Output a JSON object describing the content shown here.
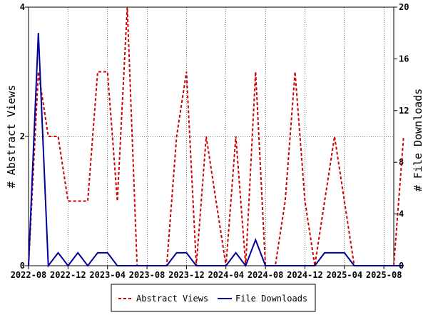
{
  "chart_data": {
    "type": "line",
    "title": "",
    "x_ticks": [
      "2022-08",
      "2022-12",
      "2023-04",
      "2023-08",
      "2023-12",
      "2024-04",
      "2024-08",
      "2024-12",
      "2025-04",
      "2025-08"
    ],
    "x_range": [
      "2022-08",
      "2025-09"
    ],
    "y_left": {
      "label": "# Abstract Views",
      "ticks": [
        "0",
        "2",
        "4"
      ],
      "range": [
        0,
        4
      ]
    },
    "y_right": {
      "label": "# File Downloads",
      "ticks": [
        "0",
        "4",
        "8",
        "12",
        "16",
        "20"
      ],
      "range": [
        0,
        20
      ]
    },
    "grid": true,
    "legend_position": "bottom-center",
    "series": [
      {
        "name": "Abstract Views",
        "axis": "left",
        "style": "dashed",
        "color": "#cc0000",
        "points": [
          [
            "2022-08",
            0
          ],
          [
            "2022-09",
            3
          ],
          [
            "2022-10",
            2
          ],
          [
            "2022-11",
            2
          ],
          [
            "2022-12",
            1
          ],
          [
            "2023-01",
            1
          ],
          [
            "2023-02",
            1
          ],
          [
            "2023-03",
            3
          ],
          [
            "2023-04",
            3
          ],
          [
            "2023-05",
            1
          ],
          [
            "2023-06",
            4
          ],
          [
            "2023-07",
            0
          ],
          [
            "2023-08",
            0
          ],
          [
            "2023-09",
            0
          ],
          [
            "2023-10",
            0
          ],
          [
            "2023-11",
            2
          ],
          [
            "2023-12",
            3
          ],
          [
            "2024-01",
            0
          ],
          [
            "2024-02",
            2
          ],
          [
            "2024-03",
            1
          ],
          [
            "2024-04",
            0
          ],
          [
            "2024-05",
            2
          ],
          [
            "2024-06",
            0
          ],
          [
            "2024-07",
            3
          ],
          [
            "2024-08",
            0
          ],
          [
            "2024-09",
            0
          ],
          [
            "2024-10",
            1
          ],
          [
            "2024-11",
            3
          ],
          [
            "2024-12",
            1
          ],
          [
            "2025-01",
            0
          ],
          [
            "2025-02",
            1
          ],
          [
            "2025-03",
            2
          ],
          [
            "2025-04",
            1
          ],
          [
            "2025-05",
            0
          ],
          [
            "2025-06",
            0
          ],
          [
            "2025-07",
            0
          ],
          [
            "2025-08",
            0
          ],
          [
            "2025-09",
            0
          ],
          [
            "2025-10",
            2
          ]
        ]
      },
      {
        "name": "File Downloads",
        "axis": "right",
        "style": "solid",
        "color": "#000099",
        "points": [
          [
            "2022-08",
            0
          ],
          [
            "2022-09",
            18
          ],
          [
            "2022-10",
            0
          ],
          [
            "2022-11",
            1
          ],
          [
            "2022-12",
            0
          ],
          [
            "2023-01",
            1
          ],
          [
            "2023-02",
            0
          ],
          [
            "2023-03",
            1
          ],
          [
            "2023-04",
            1
          ],
          [
            "2023-05",
            0
          ],
          [
            "2023-06",
            0
          ],
          [
            "2023-07",
            0
          ],
          [
            "2023-08",
            0
          ],
          [
            "2023-09",
            0
          ],
          [
            "2023-10",
            0
          ],
          [
            "2023-11",
            1
          ],
          [
            "2023-12",
            1
          ],
          [
            "2024-01",
            0
          ],
          [
            "2024-02",
            0
          ],
          [
            "2024-03",
            0
          ],
          [
            "2024-04",
            0
          ],
          [
            "2024-05",
            1
          ],
          [
            "2024-06",
            0
          ],
          [
            "2024-07",
            2
          ],
          [
            "2024-08",
            0
          ],
          [
            "2024-09",
            0
          ],
          [
            "2024-10",
            0
          ],
          [
            "2024-11",
            0
          ],
          [
            "2024-12",
            0
          ],
          [
            "2025-01",
            0
          ],
          [
            "2025-02",
            1
          ],
          [
            "2025-03",
            1
          ],
          [
            "2025-04",
            1
          ],
          [
            "2025-05",
            0
          ],
          [
            "2025-06",
            0
          ],
          [
            "2025-07",
            0
          ],
          [
            "2025-08",
            0
          ],
          [
            "2025-09",
            0
          ],
          [
            "2025-10",
            0
          ]
        ]
      }
    ]
  }
}
